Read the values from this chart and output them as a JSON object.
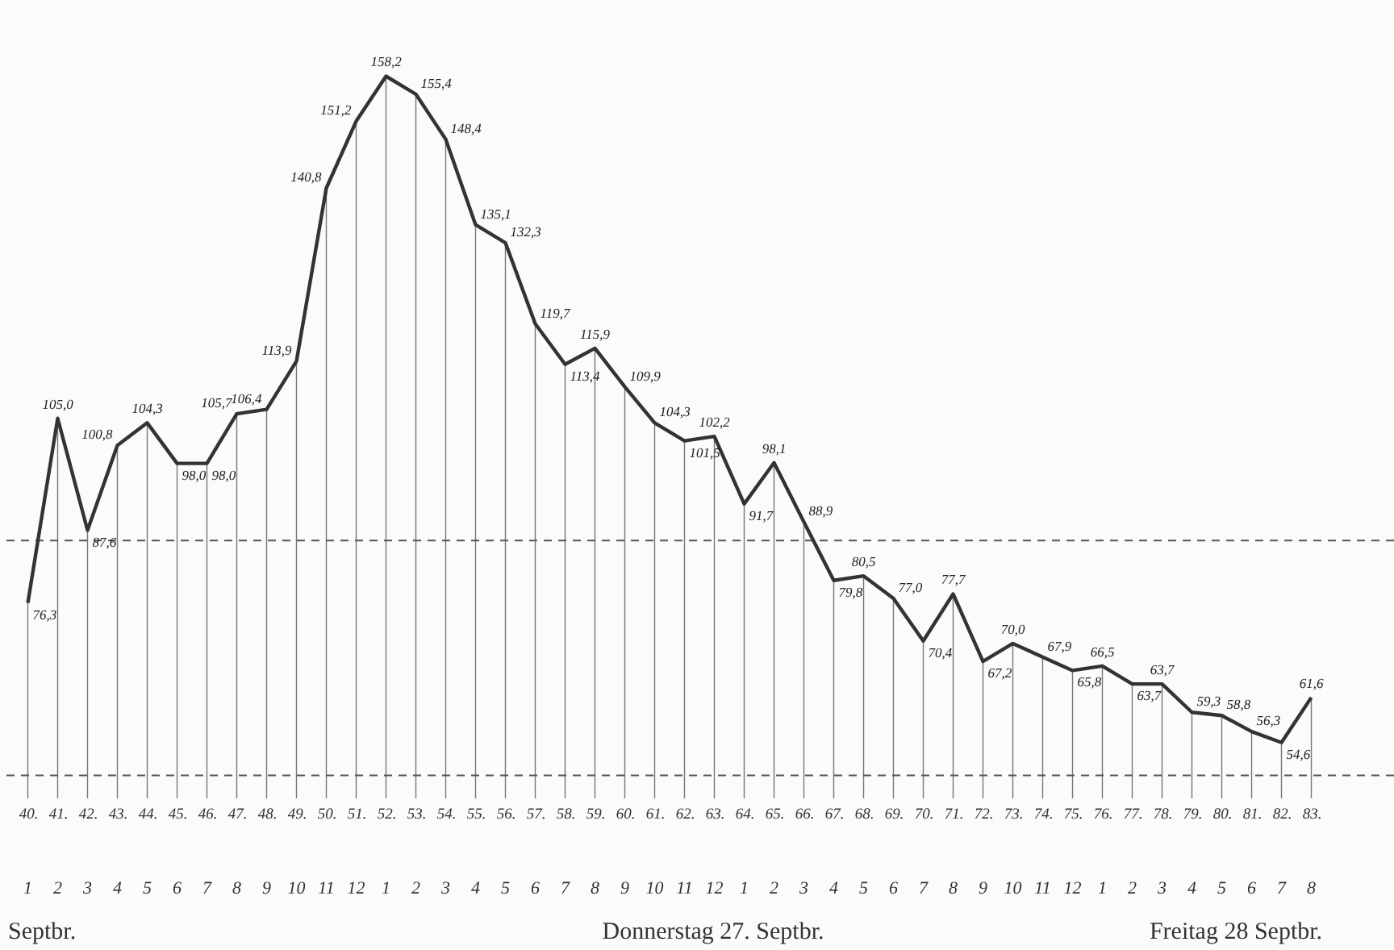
{
  "chart_data": {
    "type": "line",
    "categories": [
      "40.",
      "41.",
      "42.",
      "43.",
      "44.",
      "45.",
      "46.",
      "47.",
      "48.",
      "49.",
      "50.",
      "51.",
      "52.",
      "53.",
      "54.",
      "55.",
      "56.",
      "57.",
      "58.",
      "59.",
      "60.",
      "61.",
      "62.",
      "63.",
      "64.",
      "65.",
      "66.",
      "67.",
      "68.",
      "69.",
      "70.",
      "71.",
      "72.",
      "73.",
      "74.",
      "75.",
      "76.",
      "77.",
      "78.",
      "79.",
      "80.",
      "81.",
      "82.",
      "83."
    ],
    "values": [
      76.3,
      105.0,
      87.6,
      100.8,
      104.3,
      98.0,
      98.0,
      105.7,
      106.4,
      113.9,
      140.8,
      151.2,
      158.2,
      155.4,
      148.4,
      135.1,
      132.3,
      119.7,
      113.4,
      115.9,
      109.9,
      104.3,
      101.5,
      102.2,
      91.7,
      98.1,
      88.9,
      79.8,
      80.5,
      77.0,
      70.4,
      77.7,
      67.2,
      70.0,
      67.9,
      65.8,
      66.5,
      63.7,
      63.7,
      59.3,
      58.8,
      56.3,
      54.6,
      61.6
    ],
    "value_labels": [
      "76,3",
      "105,0",
      "87,6",
      "100,8",
      "104,3",
      "98,0",
      "98,0",
      "105,7",
      "106,4",
      "113,9",
      "140,8",
      "151,2",
      "158,2",
      "155,4",
      "148,4",
      "135,1",
      "132,3",
      "119,7",
      "113,4",
      "115,9",
      "109,9",
      "104,3",
      "101,5",
      "102,2",
      "91,7",
      "98,1",
      "88,9",
      "79,8",
      "80,5",
      "77,0",
      "70,4",
      "77,7",
      "67,2",
      "70,0",
      "67,9",
      "65,8",
      "66,5",
      "63,7",
      "63,7",
      "59,3",
      "58,8",
      "56,3",
      "54,6",
      "61,6"
    ],
    "color": "#333333",
    "grid": "x",
    "tick_labels": "x",
    "ref_lines": [
      {
        "axis": "y",
        "value": 86,
        "line_style": "dashed",
        "color": "#555555"
      },
      {
        "axis": "y",
        "value": 49.5,
        "line_style": "dashed",
        "color": "#555555"
      }
    ],
    "annotations": [
      "1 2 3 4 5",
      "6 7 8 9 10 11 12 1 2 3 4 5",
      "6 7 8 9 10 11 12 1 2 3 4 5",
      "6 7 8 9 10 11 12 1 2 3 4 5",
      "6 7 8",
      "Septbr.",
      "Donnerstag 27. Septbr.",
      "Freitag 28 Septbr."
    ]
  }
}
